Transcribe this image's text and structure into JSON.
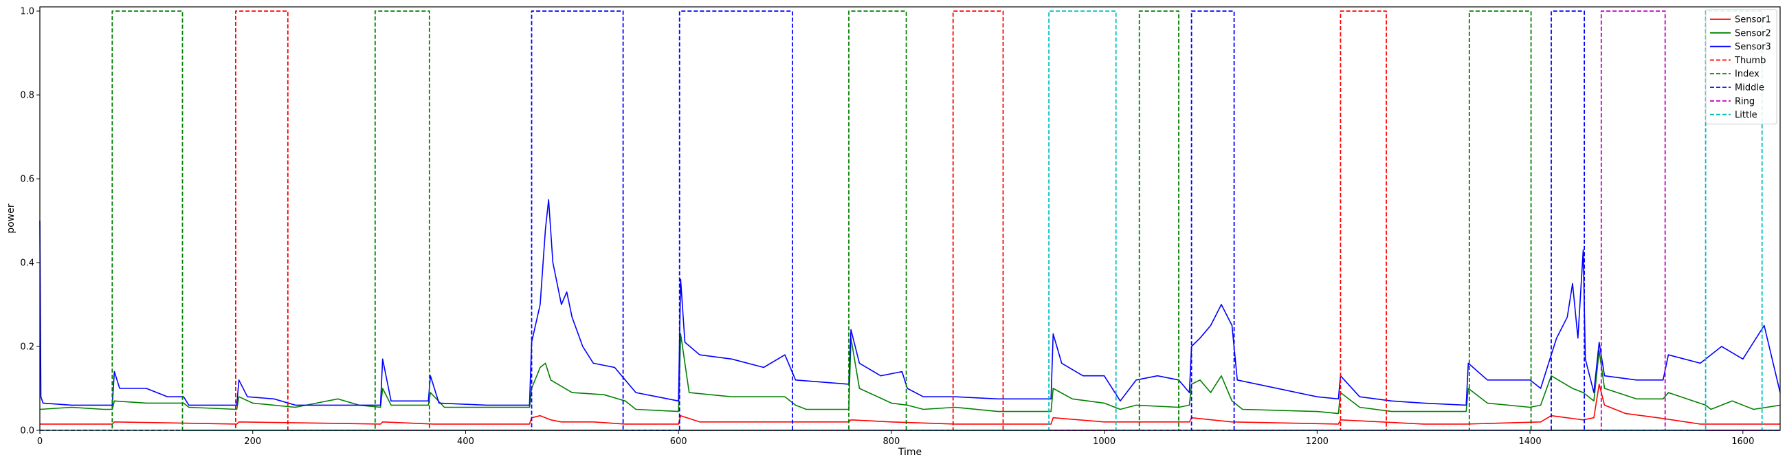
{
  "chart_data": {
    "type": "line",
    "title": "",
    "xlabel": "Time",
    "ylabel": "power",
    "xlim": [
      0,
      1635
    ],
    "ylim": [
      0,
      1.01
    ],
    "xticks": [
      0,
      200,
      400,
      600,
      800,
      1000,
      1200,
      1400,
      1600
    ],
    "yticks": [
      0.0,
      0.2,
      0.4,
      0.6,
      0.8,
      1.0
    ],
    "xtick_labels": [
      "0",
      "200",
      "400",
      "600",
      "800",
      "1000",
      "1200",
      "1400",
      "1600"
    ],
    "ytick_labels": [
      "0.0",
      "0.2",
      "0.4",
      "0.6",
      "0.8",
      "1.0"
    ],
    "grid": false,
    "legend_position": "top-right",
    "series": [
      {
        "name": "Sensor1",
        "color": "#ff0000",
        "style": "solid",
        "x": [
          0,
          68,
          70,
          185,
          187,
          320,
          322,
          370,
          460,
          462,
          470,
          480,
          490,
          520,
          550,
          600,
          602,
          620,
          710,
          760,
          762,
          800,
          860,
          950,
          952,
          1000,
          1080,
          1082,
          1120,
          1220,
          1222,
          1300,
          1340,
          1410,
          1420,
          1450,
          1460,
          1465,
          1470,
          1490,
          1520,
          1560,
          1600,
          1635
        ],
        "y": [
          0.015,
          0.015,
          0.02,
          0.015,
          0.02,
          0.015,
          0.02,
          0.015,
          0.015,
          0.03,
          0.035,
          0.025,
          0.02,
          0.02,
          0.015,
          0.015,
          0.035,
          0.02,
          0.02,
          0.02,
          0.025,
          0.02,
          0.015,
          0.015,
          0.03,
          0.02,
          0.02,
          0.03,
          0.02,
          0.015,
          0.025,
          0.015,
          0.015,
          0.02,
          0.035,
          0.025,
          0.03,
          0.11,
          0.06,
          0.04,
          0.03,
          0.015,
          0.015,
          0.015
        ]
      },
      {
        "name": "Sensor2",
        "color": "#008000",
        "style": "solid",
        "x": [
          0,
          30,
          60,
          68,
          70,
          100,
          135,
          140,
          185,
          187,
          200,
          240,
          260,
          280,
          300,
          320,
          322,
          330,
          365,
          367,
          380,
          420,
          460,
          462,
          470,
          475,
          480,
          500,
          530,
          550,
          560,
          600,
          602,
          610,
          650,
          700,
          710,
          720,
          760,
          762,
          770,
          800,
          815,
          830,
          860,
          900,
          950,
          952,
          970,
          1000,
          1015,
          1030,
          1070,
          1080,
          1082,
          1090,
          1100,
          1110,
          1120,
          1130,
          1200,
          1220,
          1222,
          1240,
          1270,
          1340,
          1342,
          1360,
          1400,
          1410,
          1420,
          1440,
          1450,
          1460,
          1465,
          1470,
          1500,
          1525,
          1530,
          1565,
          1570,
          1590,
          1610,
          1635
        ],
        "y": [
          0.05,
          0.055,
          0.05,
          0.05,
          0.07,
          0.065,
          0.065,
          0.055,
          0.05,
          0.08,
          0.065,
          0.055,
          0.065,
          0.075,
          0.06,
          0.055,
          0.1,
          0.06,
          0.06,
          0.09,
          0.055,
          0.055,
          0.055,
          0.1,
          0.15,
          0.16,
          0.12,
          0.09,
          0.085,
          0.07,
          0.05,
          0.045,
          0.23,
          0.09,
          0.08,
          0.08,
          0.06,
          0.05,
          0.05,
          0.22,
          0.1,
          0.065,
          0.06,
          0.05,
          0.055,
          0.045,
          0.045,
          0.1,
          0.075,
          0.065,
          0.05,
          0.06,
          0.055,
          0.06,
          0.11,
          0.12,
          0.09,
          0.13,
          0.07,
          0.05,
          0.045,
          0.04,
          0.09,
          0.055,
          0.045,
          0.045,
          0.1,
          0.065,
          0.055,
          0.06,
          0.13,
          0.1,
          0.09,
          0.07,
          0.19,
          0.1,
          0.075,
          0.075,
          0.09,
          0.06,
          0.05,
          0.07,
          0.05,
          0.06
        ]
      },
      {
        "name": "Sensor3",
        "color": "#0000ff",
        "style": "solid",
        "x": [
          0,
          1,
          3,
          30,
          60,
          68,
          70,
          75,
          100,
          120,
          135,
          140,
          185,
          187,
          195,
          220,
          240,
          270,
          300,
          320,
          322,
          330,
          365,
          367,
          375,
          420,
          460,
          462,
          470,
          475,
          478,
          482,
          490,
          495,
          500,
          510,
          520,
          540,
          550,
          560,
          580,
          600,
          602,
          606,
          620,
          650,
          680,
          700,
          710,
          760,
          762,
          770,
          790,
          810,
          815,
          830,
          860,
          900,
          940,
          950,
          952,
          960,
          980,
          1000,
          1015,
          1030,
          1050,
          1070,
          1080,
          1082,
          1090,
          1100,
          1110,
          1120,
          1125,
          1200,
          1220,
          1222,
          1240,
          1270,
          1300,
          1340,
          1342,
          1360,
          1400,
          1410,
          1420,
          1425,
          1435,
          1440,
          1445,
          1450,
          1452,
          1460,
          1465,
          1470,
          1500,
          1525,
          1530,
          1560,
          1580,
          1600,
          1620,
          1635
        ],
        "y": [
          0.5,
          0.08,
          0.065,
          0.06,
          0.06,
          0.06,
          0.14,
          0.1,
          0.1,
          0.08,
          0.08,
          0.06,
          0.06,
          0.12,
          0.08,
          0.075,
          0.06,
          0.06,
          0.06,
          0.06,
          0.17,
          0.07,
          0.07,
          0.13,
          0.065,
          0.06,
          0.06,
          0.21,
          0.3,
          0.48,
          0.55,
          0.4,
          0.3,
          0.33,
          0.27,
          0.2,
          0.16,
          0.15,
          0.12,
          0.09,
          0.08,
          0.07,
          0.36,
          0.21,
          0.18,
          0.17,
          0.15,
          0.18,
          0.12,
          0.11,
          0.24,
          0.16,
          0.13,
          0.14,
          0.1,
          0.08,
          0.08,
          0.075,
          0.075,
          0.075,
          0.23,
          0.16,
          0.13,
          0.13,
          0.07,
          0.12,
          0.13,
          0.12,
          0.09,
          0.2,
          0.22,
          0.25,
          0.3,
          0.25,
          0.12,
          0.08,
          0.075,
          0.13,
          0.08,
          0.07,
          0.065,
          0.06,
          0.16,
          0.12,
          0.12,
          0.1,
          0.18,
          0.22,
          0.27,
          0.35,
          0.22,
          0.43,
          0.17,
          0.09,
          0.21,
          0.13,
          0.12,
          0.12,
          0.18,
          0.16,
          0.2,
          0.17,
          0.25,
          0.09
        ]
      },
      {
        "name": "Thumb",
        "color": "#ff0000",
        "style": "dashed",
        "x": [
          0,
          184,
          184,
          233,
          233,
          858,
          858,
          905,
          905,
          1222,
          1222,
          1265,
          1265,
          1635
        ],
        "y": [
          0,
          0,
          1,
          1,
          0,
          0,
          1,
          1,
          0,
          0,
          1,
          1,
          0,
          0
        ]
      },
      {
        "name": "Index",
        "color": "#008000",
        "style": "dashed",
        "x": [
          0,
          68,
          68,
          134,
          134,
          315,
          315,
          366,
          366,
          760,
          760,
          814,
          814,
          1033,
          1033,
          1070,
          1070,
          1343,
          1343,
          1401,
          1401,
          1635
        ],
        "y": [
          0,
          0,
          1,
          1,
          0,
          0,
          1,
          1,
          0,
          0,
          1,
          1,
          0,
          0,
          1,
          1,
          0,
          0,
          1,
          1,
          0,
          0
        ]
      },
      {
        "name": "Middle",
        "color": "#0000ff",
        "style": "dashed",
        "x": [
          0,
          462,
          462,
          548,
          548,
          601,
          601,
          707,
          707,
          1082,
          1082,
          1122,
          1122,
          1420,
          1420,
          1451,
          1451,
          1635
        ],
        "y": [
          0,
          0,
          1,
          1,
          0,
          0,
          1,
          1,
          0,
          0,
          1,
          1,
          0,
          0,
          1,
          1,
          0,
          0
        ]
      },
      {
        "name": "Ring",
        "color": "#bf00bf",
        "style": "dashed",
        "x": [
          0,
          1467,
          1467,
          1527,
          1527,
          1635
        ],
        "y": [
          0,
          0,
          1,
          1,
          0,
          0
        ]
      },
      {
        "name": "Little",
        "color": "#00bfbf",
        "style": "dashed",
        "x": [
          0,
          948,
          948,
          1011,
          1011,
          1565,
          1565,
          1618,
          1618,
          1635
        ],
        "y": [
          0,
          0,
          1,
          1,
          0,
          0,
          1,
          1,
          0,
          0
        ]
      }
    ]
  }
}
